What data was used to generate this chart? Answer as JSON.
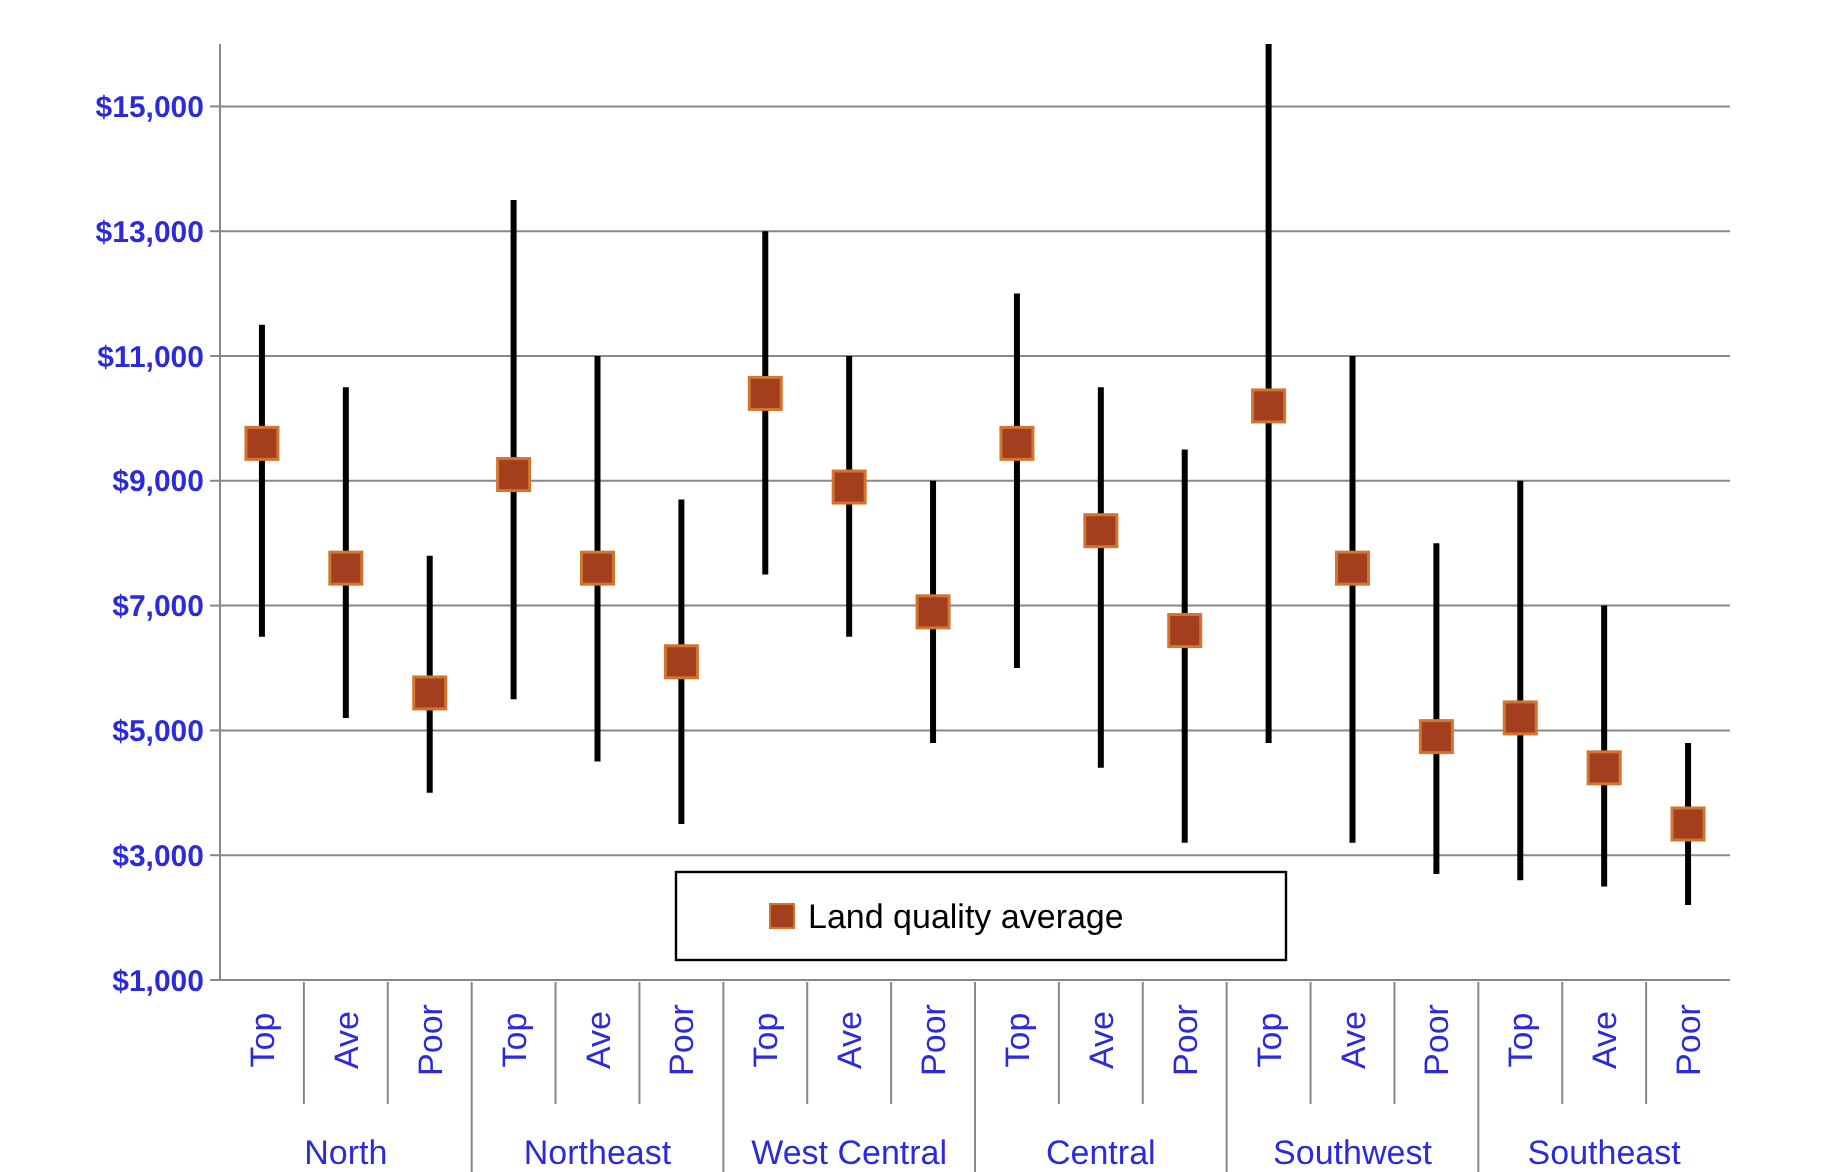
{
  "chart_data": {
    "type": "scatter",
    "categories": [
      "Top",
      "Ave",
      "Poor",
      "Top",
      "Ave",
      "Poor",
      "Top",
      "Ave",
      "Poor",
      "Top",
      "Ave",
      "Poor",
      "Top",
      "Ave",
      "Poor",
      "Top",
      "Ave",
      "Poor"
    ],
    "annotations": [
      "North",
      "Northeast",
      "West Central",
      "Central",
      "Southwest",
      "Southeast"
    ],
    "series": [
      {
        "name": "Land quality average",
        "color": "#a33f1f",
        "values": [
          9600,
          7600,
          5600,
          9100,
          7600,
          6100,
          10400,
          8900,
          6900,
          9600,
          8200,
          6600,
          10200,
          7600,
          4900,
          5200,
          4400,
          3500
        ],
        "errors": [
          [
            6500,
            11500
          ],
          [
            5200,
            10500
          ],
          [
            4000,
            7800
          ],
          [
            5500,
            13500
          ],
          [
            4500,
            11000
          ],
          [
            3500,
            8700
          ],
          [
            7500,
            13000
          ],
          [
            6500,
            11000
          ],
          [
            4800,
            9000
          ],
          [
            6000,
            12000
          ],
          [
            4400,
            10500
          ],
          [
            3200,
            9500
          ],
          [
            4800,
            16000
          ],
          [
            3200,
            11000
          ],
          [
            2700,
            8000
          ],
          [
            2600,
            9000
          ],
          [
            2500,
            7000
          ],
          [
            2200,
            4800
          ]
        ]
      }
    ],
    "ylim": [
      1000,
      16000
    ],
    "yticks": [
      {
        "value": 1000,
        "label": "$1,000"
      },
      {
        "value": 3000,
        "label": "$3,000"
      },
      {
        "value": 5000,
        "label": "$5,000"
      },
      {
        "value": 7000,
        "label": "$7,000"
      },
      {
        "value": 9000,
        "label": "$9,000"
      },
      {
        "value": 11000,
        "label": "$11,000"
      },
      {
        "value": 13000,
        "label": "$13,000"
      },
      {
        "value": 15000,
        "label": "$15,000"
      }
    ],
    "grid": "y",
    "legend": "bottom",
    "marker": "square"
  }
}
